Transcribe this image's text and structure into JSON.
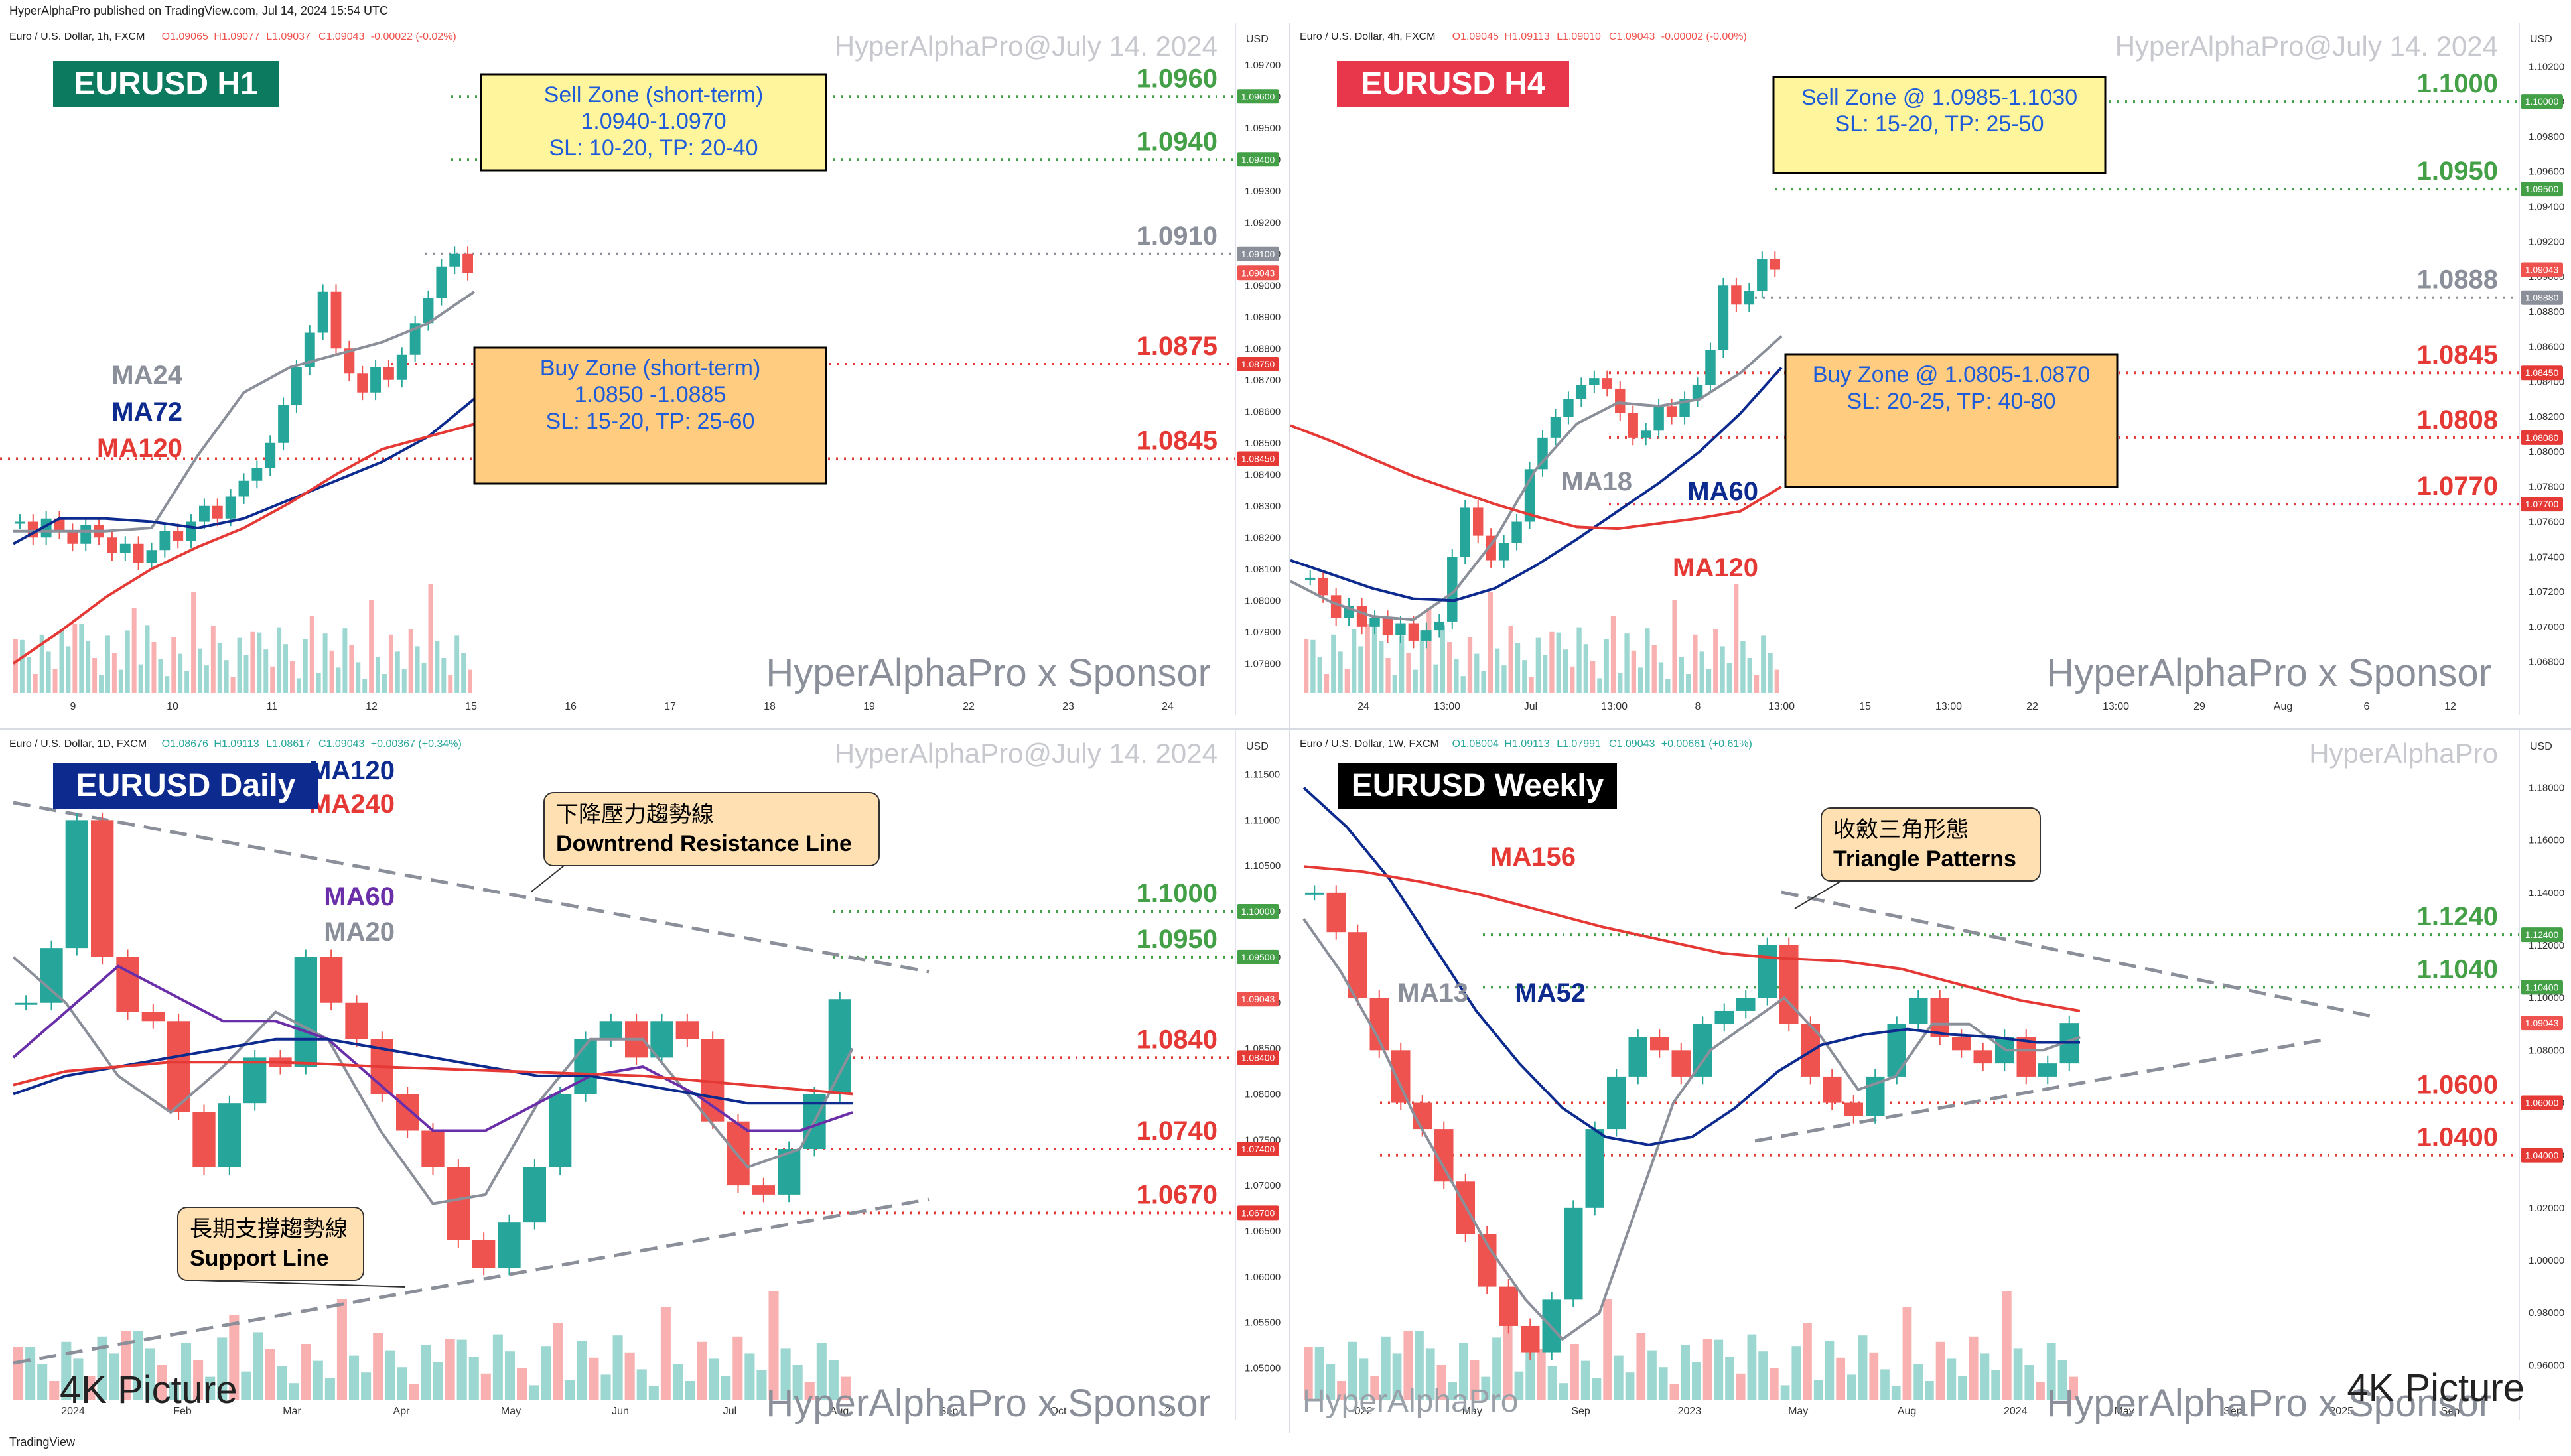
{
  "header": {
    "published": "HyperAlphaPro published on TradingView.com, Jul 14, 2024 15:54 UTC"
  },
  "footer": {
    "brand": "TradingView"
  },
  "colors": {
    "up": "#26a69a",
    "down": "#ef5350",
    "green_level": "#43a047",
    "red_level": "#e53935",
    "gray_level": "#8a8f99",
    "navy": "#0d2a8f",
    "purple": "#6a2fa8",
    "maroon": "#e53945"
  },
  "chart_data": [
    {
      "type": "candlestick",
      "panel": "h1",
      "symbol_line": "Euro / U.S. Dollar, 1h, FXCM",
      "ohlc": {
        "o": "O1.09065",
        "h": "H1.09077",
        "l": "L1.09037",
        "c": "C1.09043",
        "chg": "-0.00022 (-0.02%)"
      },
      "watermark": "HyperAlphaPro@July 14. 2024",
      "title": "EURUSD H1",
      "currency": "USD",
      "x_ticks": [
        "9",
        "10",
        "11",
        "12",
        "15",
        "16",
        "17",
        "18",
        "19",
        "22",
        "23",
        "24"
      ],
      "y_ticks": [
        "1.09700",
        "1.09600",
        "1.09500",
        "1.09400",
        "1.09300",
        "1.09200",
        "1.09100",
        "1.09000",
        "1.08900",
        "1.08800",
        "1.08700",
        "1.08600",
        "1.08500",
        "1.08400",
        "1.08300",
        "1.08200",
        "1.08100",
        "1.08000",
        "1.07900",
        "1.07800"
      ],
      "ylim": [
        1.0775,
        1.0975
      ],
      "levels": [
        {
          "value": 1.096,
          "label": "1.0960",
          "tag": "1.09600",
          "color": "green"
        },
        {
          "value": 1.094,
          "label": "1.0940",
          "tag": "1.09400",
          "color": "green"
        },
        {
          "value": 1.091,
          "label": "1.0910",
          "tag": "1.09100",
          "color": "gray"
        },
        {
          "value": 1.0875,
          "label": "1.0875",
          "tag": "1.08750",
          "color": "red"
        },
        {
          "value": 1.0845,
          "label": "1.0845",
          "tag": "1.08450",
          "color": "red"
        }
      ],
      "price_tag": "1.09043",
      "boxes": [
        {
          "lines": [
            "Sell Zone (short-term)",
            "1.0940-1.0970",
            "SL: 10-20, TP: 20-40"
          ],
          "kind": "sell"
        },
        {
          "lines": [
            "Buy Zone (short-term)",
            "1.0850 -1.0885",
            "SL: 15-20, TP: 25-60"
          ],
          "kind": "buy"
        }
      ],
      "ma_labels": [
        {
          "text": "MA24",
          "color": "#8a8f99"
        },
        {
          "text": "MA72",
          "color": "#0d2a8f"
        },
        {
          "text": "MA120",
          "color": "#e53935"
        }
      ],
      "sponsor": "HyperAlphaPro x Sponsor",
      "series": [
        {
          "name": "Price",
          "values": [
            1.0825,
            1.082,
            1.0826,
            1.0822,
            1.0818,
            1.0824,
            1.082,
            1.0815,
            1.0818,
            1.0812,
            1.0816,
            1.0822,
            1.0819,
            1.0825,
            1.083,
            1.0826,
            1.0833,
            1.0838,
            1.0842,
            1.085,
            1.0862,
            1.0874,
            1.0885,
            1.0898,
            1.088,
            1.0872,
            1.0866,
            1.0874,
            1.087,
            1.0878,
            1.0888,
            1.0896,
            1.0906,
            1.091,
            1.0904
          ]
        },
        {
          "name": "MA24",
          "values": [
            1.0822,
            1.0822,
            1.0822,
            1.0823,
            1.0846,
            1.0866,
            1.0874,
            1.0878,
            1.0882,
            1.0888,
            1.0898
          ]
        },
        {
          "name": "MA72",
          "values": [
            1.0818,
            1.0826,
            1.0826,
            1.0825,
            1.0823,
            1.0826,
            1.0832,
            1.0838,
            1.0844,
            1.0852,
            1.0864
          ]
        },
        {
          "name": "MA120",
          "values": [
            1.078,
            1.079,
            1.0801,
            1.081,
            1.0817,
            1.0823,
            1.0831,
            1.084,
            1.0848,
            1.0852,
            1.0856
          ]
        }
      ]
    },
    {
      "type": "candlestick",
      "panel": "h4",
      "symbol_line": "Euro / U.S. Dollar, 4h, FXCM",
      "ohlc": {
        "o": "O1.09045",
        "h": "H1.09113",
        "l": "L1.09010",
        "c": "C1.09043",
        "chg": "-0.00002 (-0.00%)"
      },
      "watermark": "HyperAlphaPro@July 14. 2024",
      "title": "EURUSD H4",
      "currency": "USD",
      "x_ticks": [
        "24",
        "13:00",
        "Jul",
        "13:00",
        "8",
        "13:00",
        "15",
        "13:00",
        "22",
        "13:00",
        "29",
        "Aug",
        "6",
        "12"
      ],
      "y_ticks": [
        "1.10200",
        "1.10000",
        "1.09800",
        "1.09600",
        "1.09400",
        "1.09200",
        "1.09000",
        "1.08800",
        "1.08600",
        "1.08400",
        "1.08200",
        "1.08000",
        "1.07800",
        "1.07600",
        "1.07400",
        "1.07200",
        "1.07000",
        "1.06800"
      ],
      "ylim": [
        1.067,
        1.103
      ],
      "levels": [
        {
          "value": 1.1,
          "label": "1.1000",
          "tag": "1.10000",
          "color": "green"
        },
        {
          "value": 1.095,
          "label": "1.0950",
          "tag": "1.09500",
          "color": "green"
        },
        {
          "value": 1.0888,
          "label": "1.0888",
          "tag": "1.08880",
          "color": "gray"
        },
        {
          "value": 1.0845,
          "label": "1.0845",
          "tag": "1.08450",
          "color": "red"
        },
        {
          "value": 1.0808,
          "label": "1.0808",
          "tag": "1.08080",
          "color": "red"
        },
        {
          "value": 1.077,
          "label": "1.0770",
          "tag": "1.07700",
          "color": "red"
        }
      ],
      "price_tag": "1.09043",
      "boxes": [
        {
          "lines": [
            "Sell Zone @ 1.0985-1.1030",
            "SL: 15-20, TP: 25-50"
          ],
          "kind": "sell"
        },
        {
          "lines": [
            "Buy Zone @ 1.0805-1.0870",
            "SL: 20-25, TP: 40-80"
          ],
          "kind": "buy"
        }
      ],
      "ma_labels": [
        {
          "text": "MA18",
          "color": "#8a8f99"
        },
        {
          "text": "MA60",
          "color": "#0d2a8f"
        },
        {
          "text": "MA120",
          "color": "#e53935"
        }
      ],
      "sponsor": "HyperAlphaPro x Sponsor",
      "series": [
        {
          "name": "Price",
          "values": [
            1.0728,
            1.0718,
            1.0705,
            1.0712,
            1.07,
            1.0705,
            1.0695,
            1.0702,
            1.0692,
            1.0698,
            1.0703,
            1.074,
            1.0768,
            1.0752,
            1.0738,
            1.0748,
            1.076,
            1.079,
            1.0808,
            1.082,
            1.083,
            1.0838,
            1.0842,
            1.0836,
            1.0822,
            1.0808,
            1.0812,
            1.0826,
            1.082,
            1.083,
            1.0838,
            1.0858,
            1.0895,
            1.0884,
            1.0892,
            1.091,
            1.0904
          ]
        },
        {
          "name": "MA18",
          "values": [
            1.0726,
            1.0714,
            1.0706,
            1.0704,
            1.072,
            1.075,
            1.079,
            1.0816,
            1.0828,
            1.0826,
            1.083,
            1.0845,
            1.0866
          ]
        },
        {
          "name": "MA60",
          "values": [
            1.0738,
            1.073,
            1.0722,
            1.0716,
            1.0715,
            1.0722,
            1.0735,
            1.075,
            1.0766,
            1.0782,
            1.08,
            1.0822,
            1.0848
          ]
        },
        {
          "name": "MA120",
          "values": [
            1.0815,
            1.0806,
            1.0796,
            1.0786,
            1.0778,
            1.077,
            1.0763,
            1.0757,
            1.0756,
            1.0759,
            1.0762,
            1.0766,
            1.078
          ]
        }
      ]
    },
    {
      "type": "candlestick",
      "panel": "daily",
      "symbol_line": "Euro / U.S. Dollar, 1D, FXCM",
      "ohlc": {
        "o": "O1.08676",
        "h": "H1.09113",
        "l": "L1.08617",
        "c": "C1.09043",
        "chg": "+0.00367 (+0.34%)"
      },
      "watermark": "HyperAlphaPro@July 14. 2024",
      "title": "EURUSD Daily",
      "currency": "USD",
      "x_ticks": [
        "2024",
        "Feb",
        "Mar",
        "Apr",
        "May",
        "Jun",
        "Jul",
        "Aug",
        "Sep",
        "Oct",
        "2"
      ],
      "y_ticks": [
        "1.11500",
        "1.11000",
        "1.10500",
        "1.10000",
        "1.09500",
        "1.09000",
        "1.08500",
        "1.08000",
        "1.07500",
        "1.07000",
        "1.06500",
        "1.06000",
        "1.05500",
        "1.05000"
      ],
      "ylim": [
        1.048,
        1.117
      ],
      "levels": [
        {
          "value": 1.1,
          "label": "1.1000",
          "tag": "1.10000",
          "color": "green"
        },
        {
          "value": 1.095,
          "label": "1.0950",
          "tag": "1.09500",
          "color": "green"
        },
        {
          "value": 1.084,
          "label": "1.0840",
          "tag": "1.08400",
          "color": "red"
        },
        {
          "value": 1.074,
          "label": "1.0740",
          "tag": "1.07400",
          "color": "red"
        },
        {
          "value": 1.067,
          "label": "1.0670",
          "tag": "1.06700",
          "color": "red"
        }
      ],
      "price_tag": "1.09043",
      "callouts": [
        {
          "zh": "下降壓力趨勢線",
          "en": "Downtrend Resistance Line"
        },
        {
          "zh": "長期支撐趨勢線",
          "en": "Support Line"
        }
      ],
      "ma_labels": [
        {
          "text": "MA120",
          "color": "#0d2a8f"
        },
        {
          "text": "MA240",
          "color": "#e53935"
        },
        {
          "text": "MA60",
          "color": "#6a2fa8"
        },
        {
          "text": "MA20",
          "color": "#8a8f99"
        }
      ],
      "sponsor": "HyperAlphaPro x Sponsor",
      "corner_note": "4K Picture",
      "series": [
        {
          "name": "Price",
          "values": [
            1.09,
            1.096,
            1.11,
            1.095,
            1.089,
            1.088,
            1.078,
            1.072,
            1.079,
            1.084,
            1.083,
            1.095,
            1.09,
            1.086,
            1.08,
            1.076,
            1.072,
            1.064,
            1.061,
            1.066,
            1.072,
            1.08,
            1.086,
            1.088,
            1.084,
            1.088,
            1.086,
            1.077,
            1.07,
            1.069,
            1.074,
            1.08,
            1.0904
          ]
        },
        {
          "name": "MA20",
          "values": [
            1.095,
            1.09,
            1.082,
            1.078,
            1.083,
            1.089,
            1.086,
            1.076,
            1.068,
            1.069,
            1.079,
            1.086,
            1.086,
            1.079,
            1.072,
            1.074,
            1.085
          ]
        },
        {
          "name": "MA60",
          "values": [
            1.084,
            1.089,
            1.094,
            1.091,
            1.088,
            1.088,
            1.086,
            1.081,
            1.076,
            1.076,
            1.079,
            1.082,
            1.083,
            1.08,
            1.076,
            1.076,
            1.078
          ]
        },
        {
          "name": "MA120",
          "values": [
            1.08,
            1.082,
            1.083,
            1.084,
            1.085,
            1.086,
            1.086,
            1.085,
            1.084,
            1.083,
            1.082,
            1.082,
            1.081,
            1.08,
            1.079,
            1.079,
            1.079
          ]
        },
        {
          "name": "MA240",
          "values": [
            1.081,
            1.0825,
            1.083,
            1.0835,
            1.0835,
            1.0835,
            1.0833,
            1.083,
            1.0828,
            1.0826,
            1.0824,
            1.0822,
            1.082,
            1.0815,
            1.081,
            1.0805,
            1.08
          ]
        }
      ]
    },
    {
      "type": "candlestick",
      "panel": "weekly",
      "symbol_line": "Euro / U.S. Dollar, 1W, FXCM",
      "ohlc": {
        "o": "O1.08004",
        "h": "H1.09113",
        "l": "L1.07991",
        "c": "C1.09043",
        "chg": "+0.00661 (+0.61%)"
      },
      "watermark": "HyperAlphaPro",
      "title": "EURUSD Weekly",
      "currency": "USD",
      "x_ticks": [
        "022",
        "May",
        "Sep",
        "2023",
        "May",
        "Aug",
        "2024",
        "May",
        "Sep",
        "2025",
        "Sep"
      ],
      "y_ticks": [
        "1.18000",
        "1.16000",
        "1.14000",
        "1.12000",
        "1.10000",
        "1.08000",
        "1.06000",
        "1.04000",
        "1.02000",
        "1.00000",
        "0.98000",
        "0.96000"
      ],
      "ylim": [
        0.952,
        1.192
      ],
      "levels": [
        {
          "value": 1.124,
          "label": "1.1240",
          "tag": "1.12400",
          "color": "green"
        },
        {
          "value": 1.104,
          "label": "1.1040",
          "tag": "1.10400",
          "color": "green"
        },
        {
          "value": 1.06,
          "label": "1.0600",
          "tag": "1.06000",
          "color": "red"
        },
        {
          "value": 1.04,
          "label": "1.0400",
          "tag": "1.04000",
          "color": "red"
        }
      ],
      "price_tag": "1.09043",
      "callouts": [
        {
          "zh": "收斂三角形態",
          "en": "Triangle Patterns"
        }
      ],
      "ma_labels": [
        {
          "text": "MA156",
          "color": "#e53935"
        },
        {
          "text": "MA13",
          "color": "#8a8f99"
        },
        {
          "text": "MA52",
          "color": "#0d2a8f"
        }
      ],
      "sponsor": "HyperAlphaPro x Sponsor",
      "corner_note": "4K Picture",
      "bottom_watermark": "HyperAlphaPro",
      "series": [
        {
          "name": "Price",
          "values": [
            1.14,
            1.125,
            1.1,
            1.08,
            1.06,
            1.05,
            1.03,
            1.01,
            0.99,
            0.975,
            0.965,
            0.985,
            1.02,
            1.05,
            1.07,
            1.085,
            1.08,
            1.07,
            1.09,
            1.095,
            1.1,
            1.12,
            1.09,
            1.07,
            1.06,
            1.055,
            1.07,
            1.09,
            1.1,
            1.085,
            1.08,
            1.075,
            1.085,
            1.07,
            1.075,
            1.0904
          ]
        },
        {
          "name": "MA13",
          "values": [
            1.13,
            1.11,
            1.085,
            1.055,
            1.03,
            1.005,
            0.985,
            0.97,
            0.98,
            1.02,
            1.06,
            1.08,
            1.09,
            1.1,
            1.085,
            1.065,
            1.07,
            1.09,
            1.09,
            1.08,
            1.08,
            1.085
          ]
        },
        {
          "name": "MA52",
          "values": [
            1.18,
            1.165,
            1.145,
            1.12,
            1.095,
            1.075,
            1.058,
            1.047,
            1.044,
            1.047,
            1.058,
            1.072,
            1.082,
            1.086,
            1.088,
            1.086,
            1.085,
            1.083,
            1.083
          ]
        },
        {
          "name": "MA156",
          "values": [
            1.15,
            1.148,
            1.144,
            1.139,
            1.133,
            1.127,
            1.122,
            1.117,
            1.115,
            1.114,
            1.111,
            1.105,
            1.099,
            1.095
          ]
        }
      ]
    }
  ]
}
